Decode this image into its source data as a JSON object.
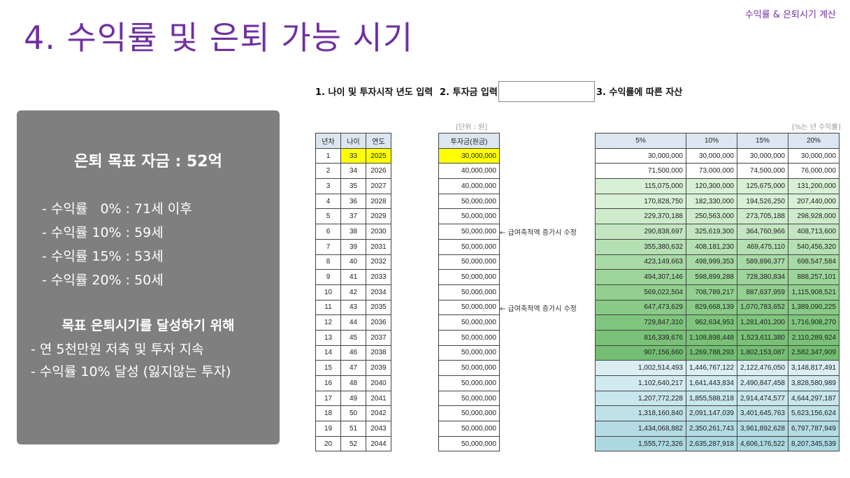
{
  "header": {
    "top_right": "수익률 & 은퇴시기 계산",
    "title": "4. 수익률 및 은퇴 가능 시기"
  },
  "summary": {
    "goal": "은퇴 목표 자금 : 52억",
    "rates": [
      "- 수익률   0% : 71세 이후",
      "- 수익률 10% : 59세",
      "- 수익률 15% : 53세",
      "- 수익률 20% : 50세"
    ],
    "plan_title": "목표 은퇴시기를 달성하기 위해",
    "plans": [
      "- 연 5천만원 저축 및 투자 지속",
      "- 수익률 10% 달성 (잃지않는 투자)"
    ]
  },
  "steps": {
    "step1": "1. 나이 및 투자시작 년도 입력",
    "step2": "2. 투자금 입력",
    "step3": "3. 수익률에 따른 자산",
    "unit_note": "[단위 : 원]",
    "rate_note": "[%는 년 수익률]"
  },
  "age_table": {
    "headers": [
      "년차",
      "나이",
      "연도"
    ],
    "rows": [
      [
        "1",
        "33",
        "2025"
      ],
      [
        "2",
        "34",
        "2026"
      ],
      [
        "3",
        "35",
        "2027"
      ],
      [
        "4",
        "36",
        "2028"
      ],
      [
        "5",
        "37",
        "2029"
      ],
      [
        "6",
        "38",
        "2030"
      ],
      [
        "7",
        "39",
        "2031"
      ],
      [
        "8",
        "40",
        "2032"
      ],
      [
        "9",
        "41",
        "2033"
      ],
      [
        "10",
        "42",
        "2034"
      ],
      [
        "11",
        "43",
        "2035"
      ],
      [
        "12",
        "44",
        "2036"
      ],
      [
        "13",
        "45",
        "2037"
      ],
      [
        "14",
        "46",
        "2038"
      ],
      [
        "15",
        "47",
        "2039"
      ],
      [
        "16",
        "48",
        "2040"
      ],
      [
        "17",
        "49",
        "2041"
      ],
      [
        "18",
        "50",
        "2042"
      ],
      [
        "19",
        "51",
        "2043"
      ],
      [
        "20",
        "52",
        "2044"
      ]
    ]
  },
  "invest_table": {
    "header": "투자금(원금)",
    "values": [
      "30,000,000",
      "40,000,000",
      "40,000,000",
      "50,000,000",
      "50,000,000",
      "50,000,000",
      "50,000,000",
      "50,000,000",
      "50,000,000",
      "50,000,000",
      "50,000,000",
      "50,000,000",
      "50,000,000",
      "50,000,000",
      "50,000,000",
      "50,000,000",
      "50,000,000",
      "50,000,000",
      "50,000,000",
      "50,000,000"
    ],
    "memos": [
      {
        "row": 6,
        "text": "← 급여축적액 증가시 수정"
      },
      {
        "row": 11,
        "text": "← 급여축적액 증가시 수정"
      }
    ]
  },
  "asset_table": {
    "headers": [
      "5%",
      "10%",
      "15%",
      "20%"
    ],
    "rows": [
      [
        "30,000,000",
        "30,000,000",
        "30,000,000",
        "30,000,000"
      ],
      [
        "71,500,000",
        "73,000,000",
        "74,500,000",
        "76,000,000"
      ],
      [
        "115,075,000",
        "120,300,000",
        "125,675,000",
        "131,200,000"
      ],
      [
        "170,828,750",
        "182,330,000",
        "194,526,250",
        "207,440,000"
      ],
      [
        "229,370,188",
        "250,563,000",
        "273,705,188",
        "298,928,000"
      ],
      [
        "290,838,697",
        "325,619,300",
        "364,760,966",
        "408,713,600"
      ],
      [
        "355,380,632",
        "408,181,230",
        "469,475,110",
        "540,456,320"
      ],
      [
        "423,149,663",
        "498,999,353",
        "589,896,377",
        "698,547,584"
      ],
      [
        "494,307,146",
        "598,899,288",
        "728,380,834",
        "888,257,101"
      ],
      [
        "569,022,504",
        "708,789,217",
        "887,637,959",
        "1,115,908,521"
      ],
      [
        "647,473,629",
        "829,668,139",
        "1,070,783,652",
        "1,389,090,225"
      ],
      [
        "729,847,310",
        "962,634,953",
        "1,281,401,200",
        "1,716,908,270"
      ],
      [
        "816,339,676",
        "1,108,898,448",
        "1,523,611,380",
        "2,110,289,924"
      ],
      [
        "907,156,660",
        "1,269,788,293",
        "1,802,153,087",
        "2,582,347,909"
      ],
      [
        "1,002,514,493",
        "1,446,767,122",
        "2,122,476,050",
        "3,148,817,491"
      ],
      [
        "1,102,640,217",
        "1,641,443,834",
        "2,490,847,458",
        "3,828,580,989"
      ],
      [
        "1,207,772,228",
        "1,855,588,218",
        "2,914,474,577",
        "4,644,297,187"
      ],
      [
        "1,318,160,840",
        "2,091,147,039",
        "3,401,645,763",
        "5,623,156,624"
      ],
      [
        "1,434,068,882",
        "2,350,261,743",
        "3,961,892,628",
        "6,797,787,949"
      ],
      [
        "1,555,772,326",
        "2,635,287,918",
        "4,606,176,522",
        "8,207,345,539"
      ]
    ],
    "row_colors": [
      "#ffffff",
      "#ffffff",
      "#d8f0d6",
      "#d8f0d6",
      "#cdebcb",
      "#c3e6c1",
      "#b5e0b3",
      "#a8daa6",
      "#9cd49a",
      "#92cf90",
      "#88ca86",
      "#7fc57d",
      "#79c177",
      "#73be72",
      "#daeef3",
      "#d1eaf0",
      "#c8e6ec",
      "#bfe1e8",
      "#b5dce4",
      "#acd8e0"
    ]
  }
}
